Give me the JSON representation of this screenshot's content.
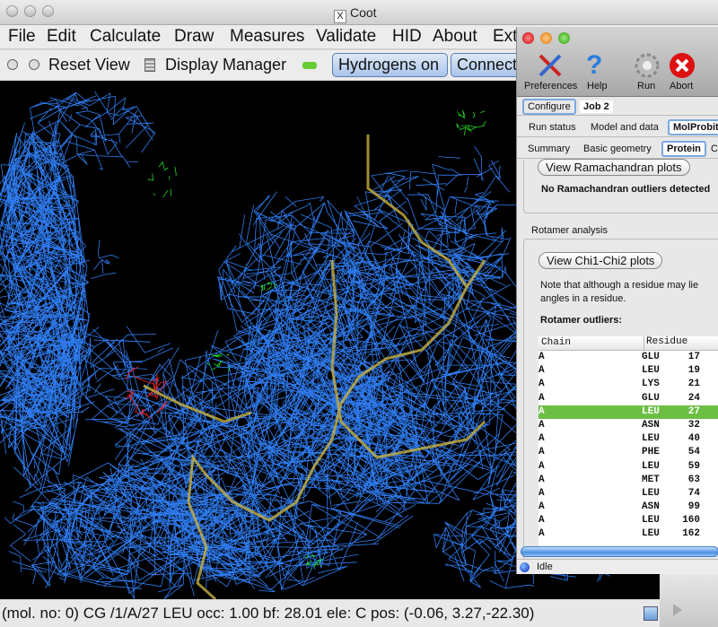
{
  "window": {
    "title": "Coot",
    "title_icon": "X"
  },
  "menu": [
    "File",
    "Edit",
    "Calculate",
    "Draw",
    "Measures",
    "Validate",
    "HID",
    "About",
    "Ext"
  ],
  "toolbar": {
    "reset_view": "Reset View",
    "display_manager": "Display Manager",
    "hydrogens": "Hydrogens on",
    "connect": "Connect"
  },
  "status_bar": "(mol. no: 0)  CG /1/A/27 LEU occ:  1.00 bf: 28.01 ele:  C pos: (-0.06, 3.27,-22.30)",
  "panel": {
    "tools": [
      "Preferences",
      "Help",
      "Run",
      "Abort"
    ],
    "tabs1": [
      "Configure",
      "Job 2"
    ],
    "tabs2": [
      "Run status",
      "Model and data",
      "MolProbit"
    ],
    "tabs3": [
      "Summary",
      "Basic geometry",
      "Protein",
      "Cl"
    ],
    "rama_button": "View Ramachandran plots",
    "rama_msg": "No Ramachandran outliers detected",
    "rotamer_section": "Rotamer analysis",
    "chi_button": "View Chi1-Chi2 plots",
    "note_line1": "Note that although a residue may lie",
    "note_line2": "angles in a residue.",
    "outliers_label": "Rotamer outliers:",
    "columns": [
      "Chain",
      "Residue"
    ],
    "rows": [
      {
        "chain": "A",
        "res": "GLU",
        "num": "17"
      },
      {
        "chain": "A",
        "res": "LEU",
        "num": "19"
      },
      {
        "chain": "A",
        "res": "LYS",
        "num": "21"
      },
      {
        "chain": "A",
        "res": "GLU",
        "num": "24"
      },
      {
        "chain": "A",
        "res": "LEU",
        "num": "27",
        "selected": true
      },
      {
        "chain": "A",
        "res": "ASN",
        "num": "32"
      },
      {
        "chain": "A",
        "res": "LEU",
        "num": "40"
      },
      {
        "chain": "A",
        "res": "PHE",
        "num": "54"
      },
      {
        "chain": "A",
        "res": "LEU",
        "num": "59"
      },
      {
        "chain": "A",
        "res": "MET",
        "num": "63"
      },
      {
        "chain": "A",
        "res": "LEU",
        "num": "74"
      },
      {
        "chain": "A",
        "res": "ASN",
        "num": "99"
      },
      {
        "chain": "A",
        "res": "LEU",
        "num": "160"
      },
      {
        "chain": "A",
        "res": "LEU",
        "num": "162"
      }
    ],
    "status": "Idle",
    "selected_color": "#6cbf44"
  },
  "colors": {
    "map_mesh": "#2f7cf0",
    "diff_pos": "#22dd22",
    "diff_neg": "#ff2020",
    "model": "#c8b040"
  }
}
